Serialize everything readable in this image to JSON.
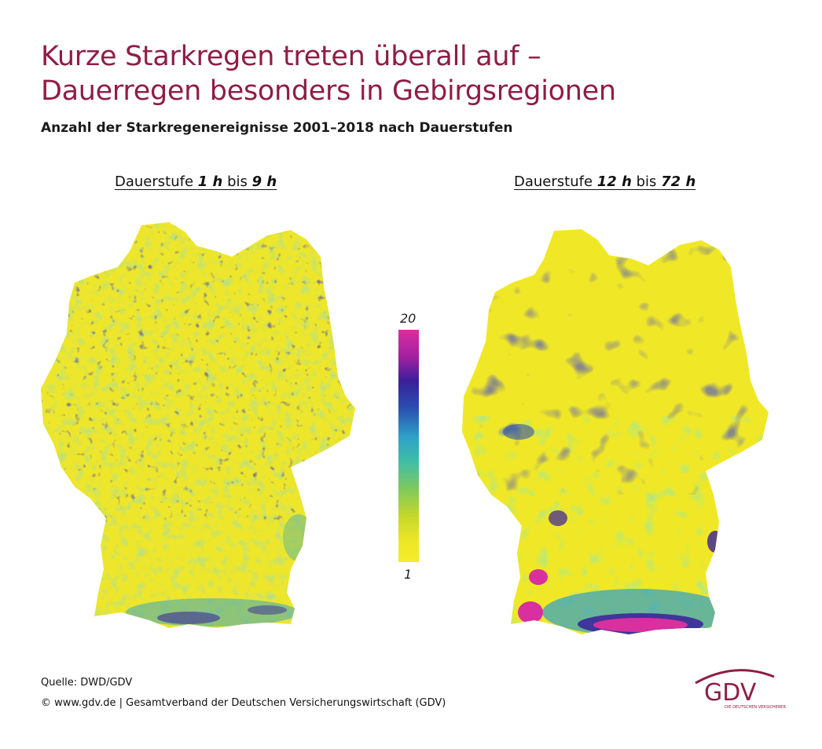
{
  "header": {
    "title_line1": "Kurze Starkregen treten überall auf –",
    "title_line2": "Dauerregen besonders in Gebirgsregionen",
    "subtitle": "Anzahl der Starkregenereignisse 2001–2018 nach Dauerstufen"
  },
  "maps": {
    "left": {
      "title_prefix": "Dauerstufe ",
      "from": "1 h",
      "middle": " bis ",
      "to": "9 h"
    },
    "right": {
      "title_prefix": "Dauerstufe ",
      "from": "12 h",
      "middle": " bis ",
      "to": "72 h"
    }
  },
  "legend": {
    "max_label": "20",
    "min_label": "1",
    "colors": [
      "#d92f9f",
      "#3a1e9a",
      "#2fa0c8",
      "#7cc860",
      "#f3ec2a"
    ]
  },
  "footer": {
    "source": "Quelle: DWD/GDV",
    "copyright": "© www.gdv.de | Gesamtverband der Deutschen Versicherungswirtschaft (GDV)"
  },
  "logo": {
    "text": "GDV",
    "tagline": "DIE DEUTSCHEN VERSICHERER"
  }
}
